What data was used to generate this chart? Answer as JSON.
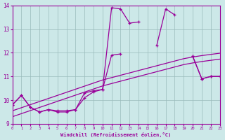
{
  "x_values": [
    0,
    1,
    2,
    3,
    4,
    5,
    6,
    7,
    8,
    9,
    10,
    11,
    12,
    13,
    14,
    15,
    16,
    17,
    18,
    19,
    20,
    21,
    22,
    23
  ],
  "line1_y": [
    9.8,
    10.2,
    9.7,
    9.5,
    9.6,
    9.5,
    9.5,
    9.6,
    10.3,
    10.4,
    10.45,
    13.9,
    13.85,
    13.25,
    13.3,
    null,
    12.3,
    13.85,
    13.6,
    null,
    11.85,
    10.9,
    11.0,
    11.0
  ],
  "line2_y": [
    9.8,
    10.2,
    9.7,
    9.5,
    9.6,
    9.55,
    9.55,
    9.6,
    10.1,
    10.35,
    10.45,
    11.9,
    11.95,
    null,
    null,
    null,
    null,
    null,
    null,
    null,
    11.85,
    10.9,
    11.0,
    11.0
  ],
  "reg1_y": [
    9.55,
    9.68,
    9.81,
    9.94,
    10.07,
    10.2,
    10.33,
    10.46,
    10.59,
    10.72,
    10.85,
    10.95,
    11.05,
    11.15,
    11.25,
    11.35,
    11.45,
    11.55,
    11.65,
    11.75,
    11.82,
    11.88,
    11.93,
    11.98
  ],
  "reg2_y": [
    9.3,
    9.43,
    9.56,
    9.69,
    9.82,
    9.95,
    10.08,
    10.21,
    10.34,
    10.47,
    10.6,
    10.7,
    10.8,
    10.9,
    11.0,
    11.1,
    11.2,
    11.3,
    11.4,
    11.5,
    11.57,
    11.63,
    11.68,
    11.73
  ],
  "color_main": "#990099",
  "bg_color": "#cce8e8",
  "grid_color": "#99bbbb",
  "xlabel": "Windchill (Refroidissement éolien,°C)",
  "ylim": [
    9.0,
    14.0
  ],
  "xlim": [
    0,
    23
  ],
  "yticks": [
    9,
    10,
    11,
    12,
    13,
    14
  ],
  "xticks": [
    0,
    1,
    2,
    3,
    4,
    5,
    6,
    7,
    8,
    9,
    10,
    11,
    12,
    13,
    14,
    15,
    16,
    17,
    18,
    19,
    20,
    21,
    22,
    23
  ]
}
